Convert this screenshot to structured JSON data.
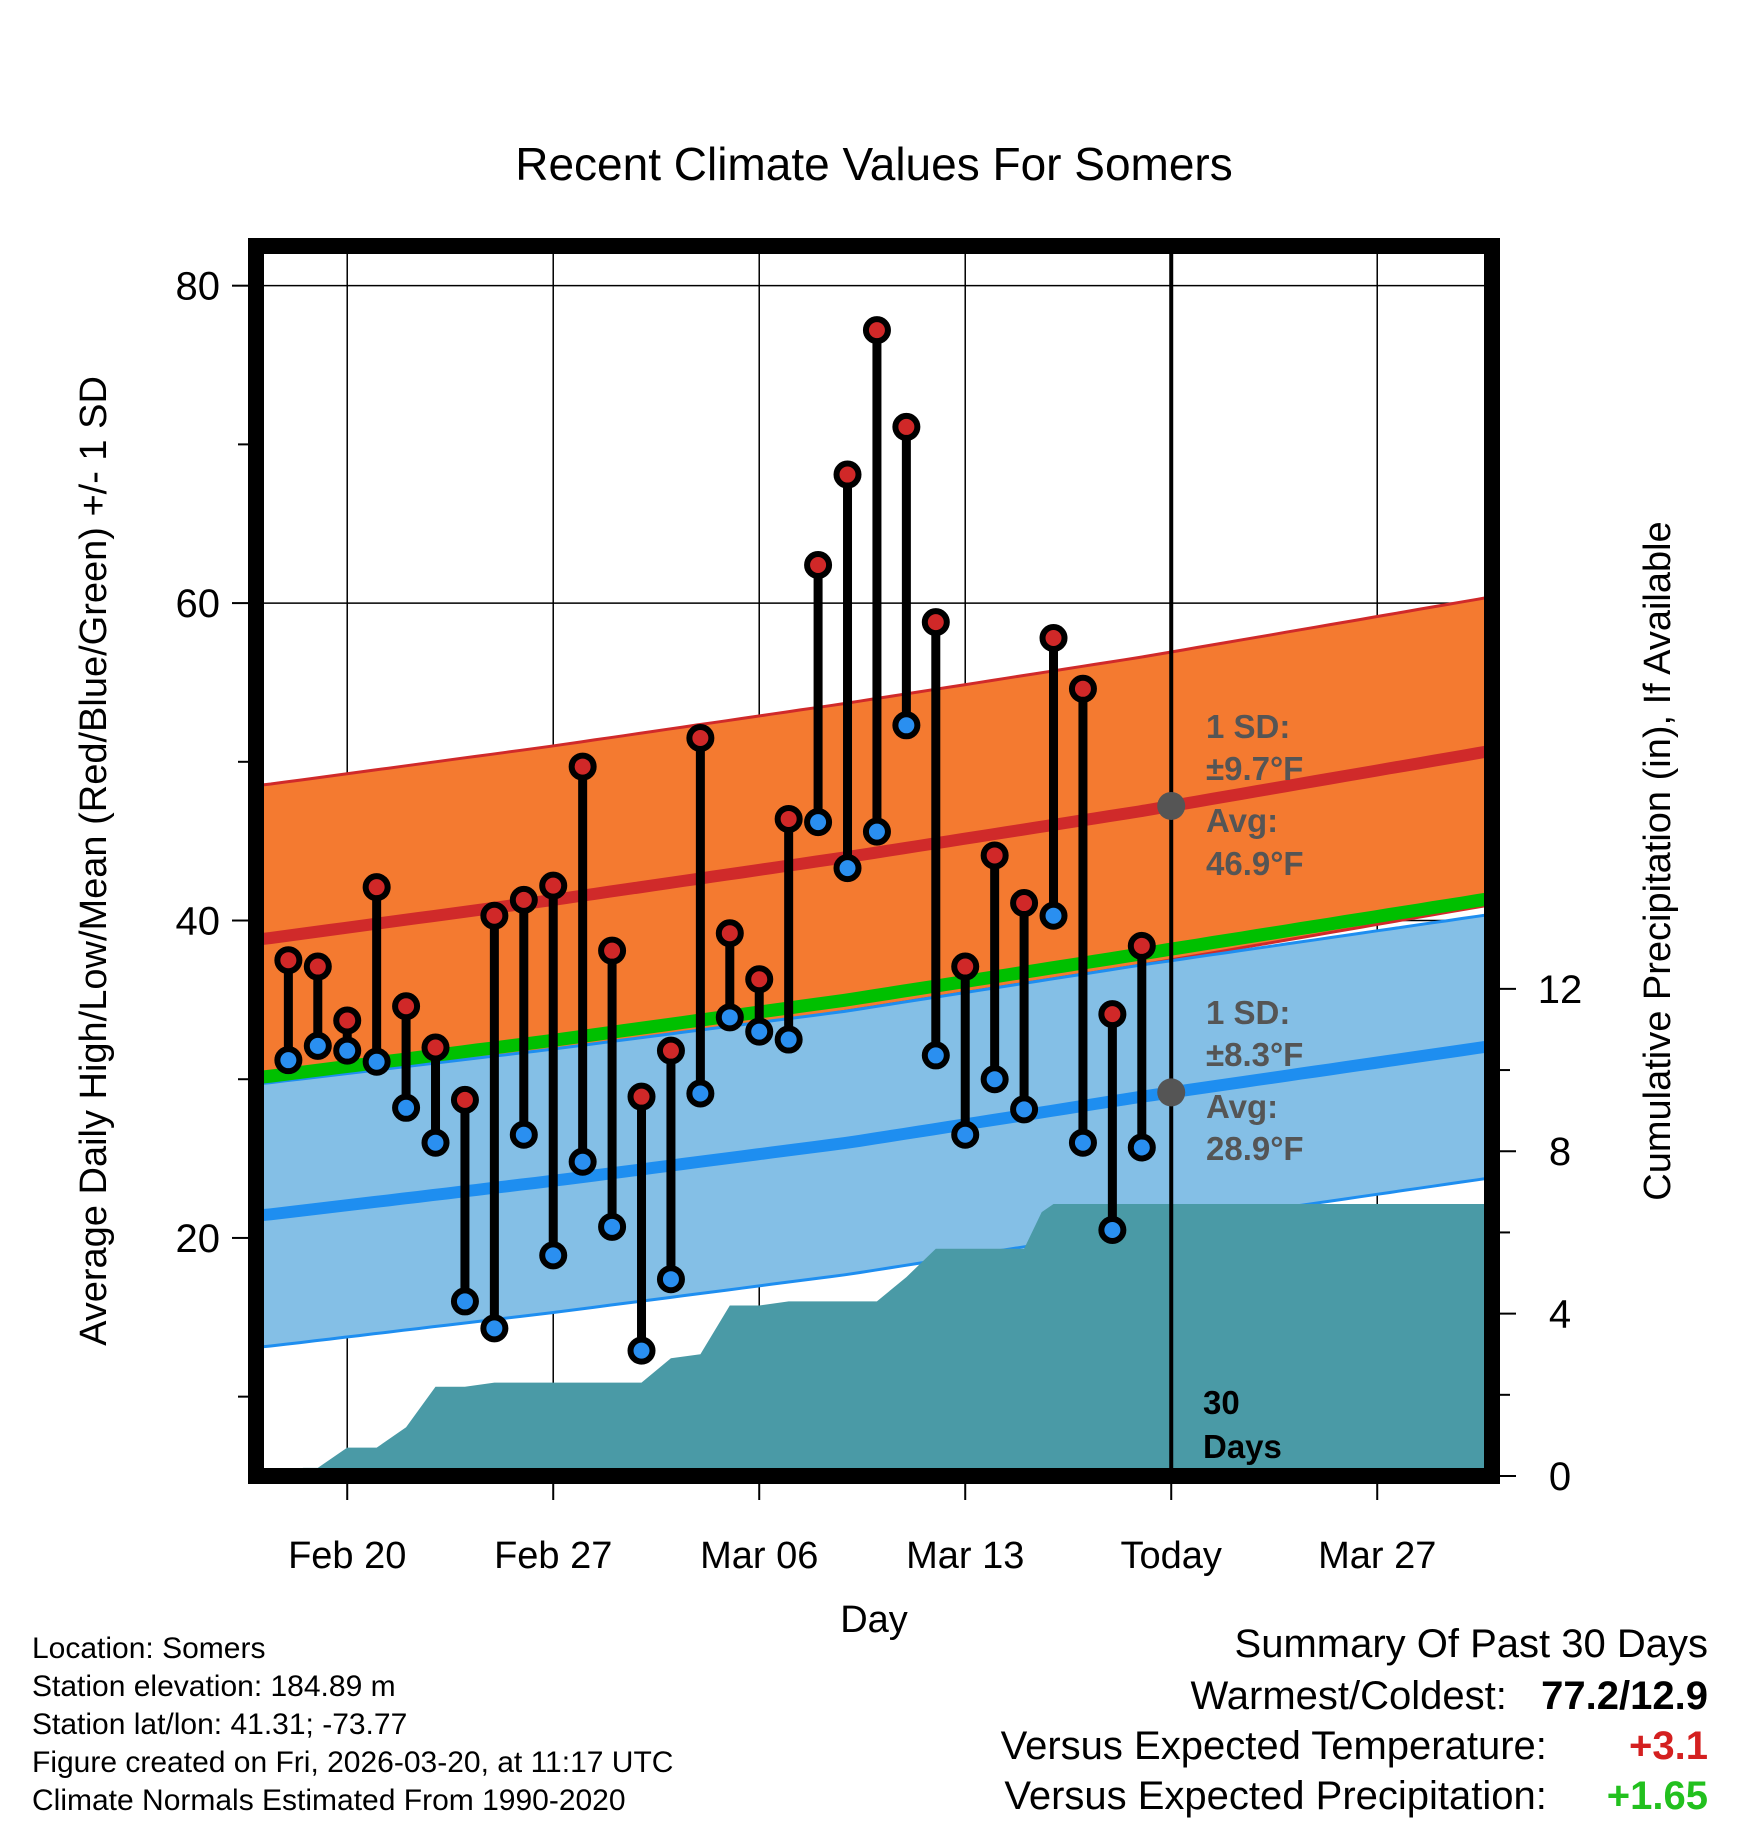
{
  "chart_data": {
    "type": "line",
    "title": "Recent Climate Values For Somers",
    "xlabel": "Day",
    "ylabel": "Average Daily High/Low/Mean (Red/Blue/Green) +/- 1 SD",
    "y2label": "Cumulative Precipitation (in), If Available",
    "x_tick_labels": [
      "Feb 20",
      "Feb 27",
      "Mar 06",
      "Mar 13",
      "Today",
      "Mar 27"
    ],
    "x_tick_days": [
      3,
      10,
      17,
      24,
      31,
      38
    ],
    "xlim": [
      -0.1,
      41.9
    ],
    "ylim": [
      5,
      82.5
    ],
    "y_ticks": [
      20,
      40,
      60,
      80
    ],
    "y2lim": [
      0,
      30.3
    ],
    "y2_ticks": [
      0,
      4,
      8,
      12
    ],
    "grid": true,
    "today_day": 31,
    "normals": {
      "days": [
        0,
        10,
        20,
        30,
        41.9
      ],
      "high_mean": [
        38.8,
        41.3,
        44.0,
        46.9,
        50.7
      ],
      "high_sd": 9.7,
      "low_mean": [
        21.4,
        23.6,
        26.0,
        28.9,
        32.1
      ],
      "low_sd": 8.3,
      "mean": [
        30.1,
        32.45,
        35.0,
        37.9,
        41.4
      ]
    },
    "series": [
      {
        "name": "Daily High",
        "days": [
          1,
          2,
          3,
          4,
          5,
          6,
          7,
          8,
          9,
          10,
          11,
          12,
          13,
          14,
          15,
          16,
          17,
          18,
          19,
          20,
          21,
          22,
          23,
          24,
          25,
          26,
          27,
          28,
          29,
          30
        ],
        "values": [
          37.5,
          37.1,
          33.7,
          42.1,
          34.6,
          32.0,
          28.7,
          40.3,
          41.3,
          42.2,
          49.7,
          38.1,
          28.9,
          31.8,
          51.5,
          39.2,
          36.3,
          46.4,
          62.4,
          68.1,
          77.2,
          71.1,
          58.8,
          37.1,
          44.1,
          41.1,
          57.8,
          54.6,
          34.1,
          38.4
        ]
      },
      {
        "name": "Daily Low",
        "days": [
          1,
          2,
          3,
          4,
          5,
          6,
          7,
          8,
          9,
          10,
          11,
          12,
          13,
          14,
          15,
          16,
          17,
          18,
          19,
          20,
          21,
          22,
          23,
          24,
          25,
          26,
          27,
          28,
          29,
          30
        ],
        "values": [
          31.2,
          32.1,
          31.8,
          31.1,
          28.2,
          26.0,
          16.0,
          14.3,
          26.5,
          18.9,
          24.8,
          20.7,
          12.9,
          17.4,
          29.1,
          33.9,
          33.0,
          32.5,
          46.2,
          43.3,
          45.6,
          52.3,
          31.5,
          26.5,
          30.0,
          28.1,
          40.3,
          26.0,
          20.5,
          25.7
        ]
      },
      {
        "name": "Cumulative Precipitation",
        "days": [
          0.6,
          1.5,
          2,
          3,
          4,
          5,
          6,
          7,
          8,
          9,
          10,
          11,
          12,
          13,
          14,
          15,
          16,
          17,
          18,
          19,
          20,
          21,
          22,
          23,
          24,
          25,
          26,
          26.6,
          27,
          28,
          29,
          30,
          31,
          41.9
        ],
        "values": [
          0,
          0.2,
          0.2,
          0.7,
          0.7,
          1.2,
          2.2,
          2.2,
          2.3,
          2.3,
          2.3,
          2.3,
          2.3,
          2.3,
          2.9,
          3.0,
          4.2,
          4.2,
          4.3,
          4.3,
          4.3,
          4.3,
          4.9,
          5.6,
          5.6,
          5.6,
          5.6,
          6.5,
          6.7,
          6.7,
          6.7,
          6.7,
          6.7,
          6.7
        ]
      }
    ],
    "annotations": {
      "high_sd_label": "1 SD:",
      "high_sd_value": "±9.7°F",
      "high_avg_label": "Avg:",
      "high_avg_value": "46.9°F",
      "low_sd_label": "1 SD:",
      "low_sd_value": "±8.3°F",
      "low_avg_label": "Avg:",
      "low_avg_value": "28.9°F",
      "days_count": "30",
      "days_word": "Days"
    }
  },
  "info": {
    "location": "Location: Somers",
    "elevation": "Station elevation: 184.89 m",
    "latlon": "Station lat/lon: 41.31; -73.77",
    "created": "Figure created on Fri, 2026-03-20, at 11:17 UTC",
    "normals": "Climate Normals Estimated From 1990-2020"
  },
  "summary": {
    "title": "Summary Of Past 30 Days",
    "warm_cold_label": "Warmest/Coldest:",
    "warm_cold_value": "77.2/12.9",
    "temp_label": "Versus Expected Temperature:",
    "temp_value": "+3.1",
    "precip_label": "Versus Expected Precipitation:",
    "precip_value": "+1.65",
    "colors": {
      "temp": "#d42020",
      "precip": "#22c01e"
    }
  },
  "colors": {
    "high_band": "#f47a30",
    "high_line": "#d02a2a",
    "low_band": "#84bfe6",
    "low_line": "#1e8ef0",
    "mean_line": "#00c000",
    "precip": "#4a9aa6",
    "high_dot": "#d02828",
    "low_dot": "#2a8ff0",
    "today_dot": "#555555",
    "annotation": "#555555"
  }
}
